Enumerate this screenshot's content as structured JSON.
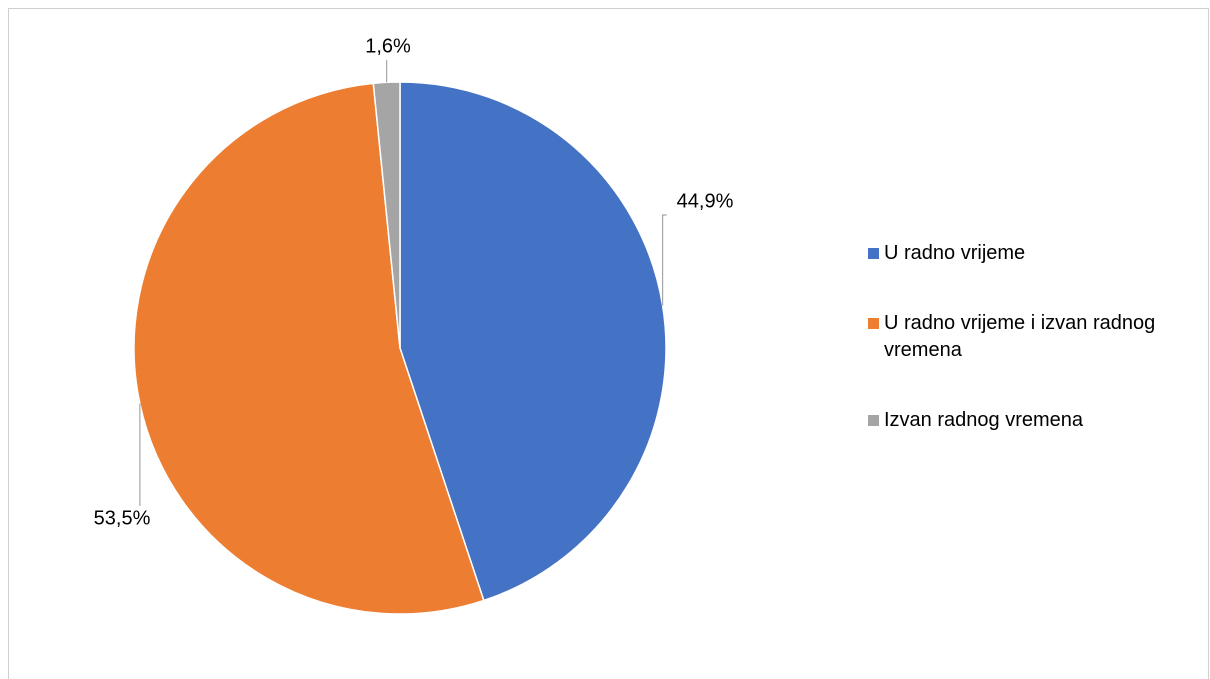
{
  "chart_data": {
    "type": "pie",
    "categories": [
      "U radno vrijeme",
      "U radno vrijeme i izvan radnog vremena",
      "Izvan radnog vremena"
    ],
    "values": [
      44.9,
      53.5,
      1.6
    ],
    "value_labels": [
      "44,9%",
      "53,5%",
      "1,6%"
    ],
    "colors": [
      "#4472c4",
      "#ed7d31",
      "#a5a5a5"
    ],
    "legend": "right"
  }
}
